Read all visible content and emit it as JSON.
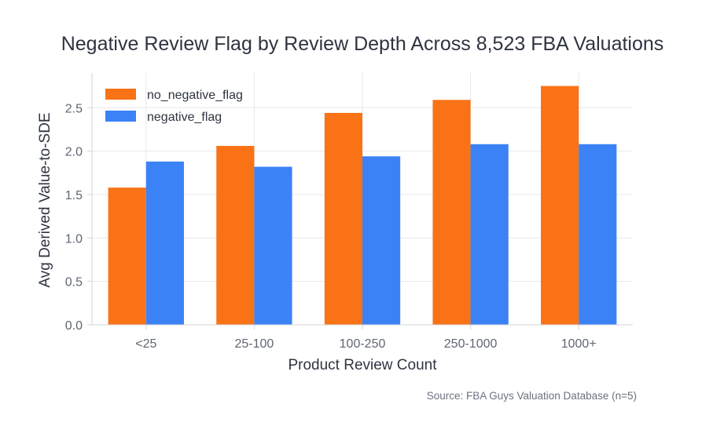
{
  "chart_data": {
    "type": "bar",
    "title": "Negative Review Flag by Review Depth Across 8,523 FBA Valuations",
    "xlabel": "Product Review Count",
    "ylabel": "Avg Derived Value-to-SDE",
    "categories": [
      "<25",
      "25-100",
      "100-250",
      "250-1000",
      "1000+"
    ],
    "series": [
      {
        "name": "no_negative_flag",
        "color": "#f97316",
        "values": [
          1.58,
          2.06,
          2.44,
          2.59,
          2.75
        ]
      },
      {
        "name": "negative_flag",
        "color": "#3b82f6",
        "values": [
          1.88,
          1.82,
          1.94,
          2.08,
          2.08
        ]
      }
    ],
    "ylim": [
      0,
      2.9
    ],
    "yticks": [
      "0.0",
      "0.5",
      "1.0",
      "1.5",
      "2.0",
      "2.5"
    ],
    "grid": true,
    "legend": "top-left",
    "source": "Source: FBA Guys Valuation Database (n=5)"
  }
}
